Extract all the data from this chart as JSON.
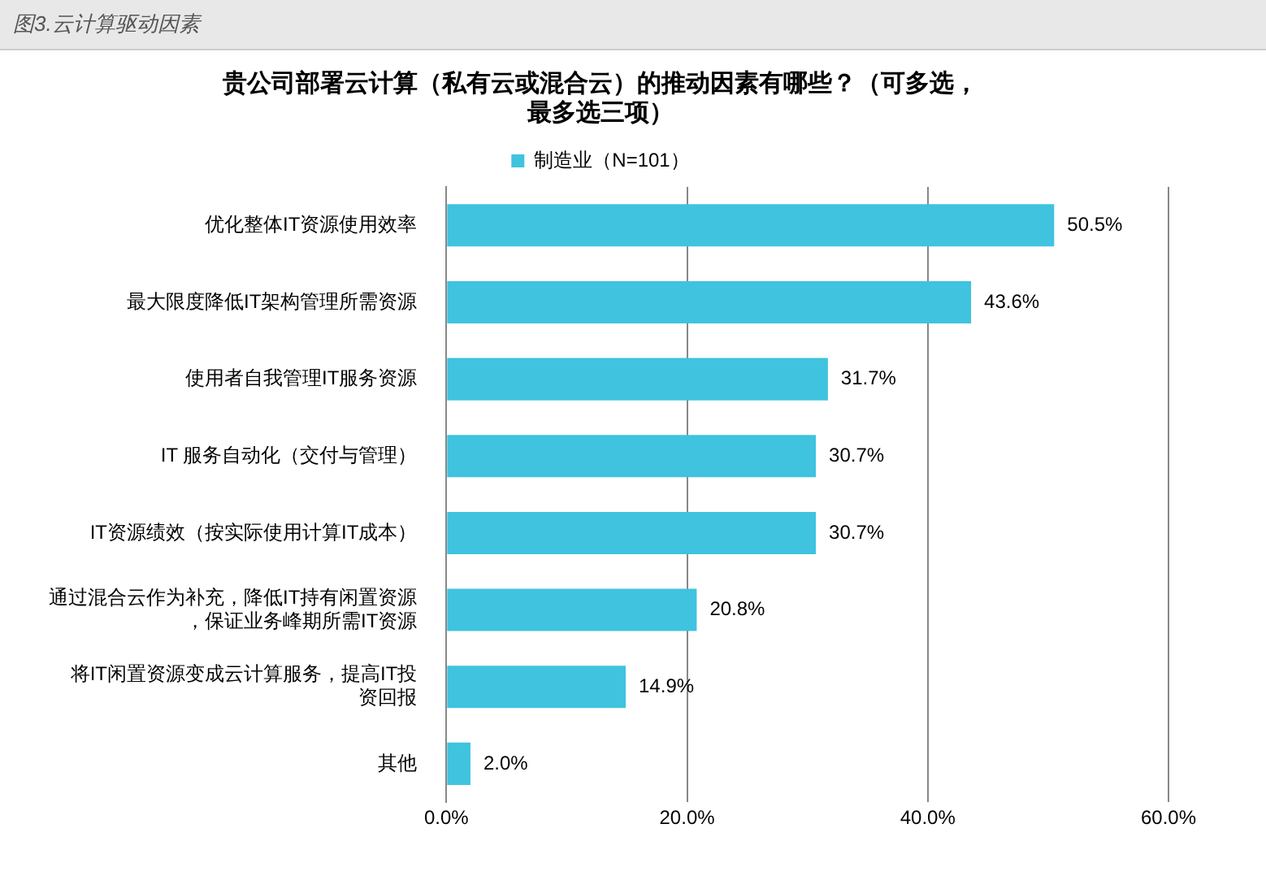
{
  "chart_data": {
    "type": "bar",
    "orientation": "horizontal",
    "title": "贵公司部署云计算（私有云或混合云）的推动因素有哪些？（可多选，最多选三项）",
    "annotations": [
      "图3.云计算驱动因素"
    ],
    "categories": [
      "优化整体IT资源使用效率",
      "最大限度降低IT架构管理所需资源",
      "使用者自我管理IT服务资源",
      "IT 服务自动化（交付与管理）",
      "IT资源绩效（按实际使用计算IT成本）",
      "通过混合云作为补充，降低IT持有闲置资源，保证业务峰期所需IT资源",
      "将IT闲置资源变成云计算服务，提高IT投资回报",
      "其他"
    ],
    "series": [
      {
        "name": "制造业（N=101）",
        "color": "#3fc3df",
        "values": [
          50.5,
          43.6,
          31.7,
          30.7,
          30.7,
          20.8,
          14.9,
          2.0
        ],
        "value_labels": [
          "50.5%",
          "43.6%",
          "31.7%",
          "30.7%",
          "30.7%",
          "20.8%",
          "14.9%",
          "2.0%"
        ]
      }
    ],
    "xlim": [
      0,
      60
    ],
    "xticks": [
      {
        "value": 0,
        "label": "0.0%"
      },
      {
        "value": 20,
        "label": "20.0%"
      },
      {
        "value": 40,
        "label": "40.0%"
      },
      {
        "value": 60,
        "label": "60.0%"
      }
    ],
    "grid": "x",
    "legend": "top"
  }
}
